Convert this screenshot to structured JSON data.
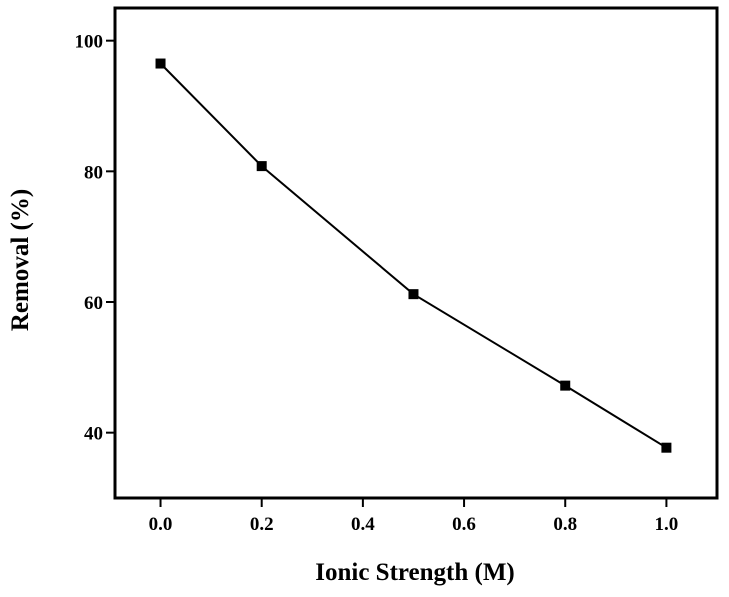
{
  "chart_data": {
    "type": "line",
    "title": "",
    "xlabel": "Ionic Strength (M)",
    "ylabel": "Removal (%)",
    "xlim": [
      -0.09,
      1.1
    ],
    "ylim": [
      30,
      105
    ],
    "x_ticks": [
      0.0,
      0.2,
      0.4,
      0.6,
      0.8,
      1.0
    ],
    "x_tick_labels": [
      "0.0",
      "0.2",
      "0.4",
      "0.6",
      "0.8",
      "1.0"
    ],
    "y_ticks": [
      40,
      60,
      80,
      100
    ],
    "y_tick_labels": [
      "40",
      "60",
      "80",
      "100"
    ],
    "grid": false,
    "legend": "none",
    "series": [
      {
        "x": [
          0.0,
          0.2,
          0.5,
          0.8,
          1.0
        ],
        "y": [
          96.5,
          80.8,
          61.2,
          47.2,
          37.7
        ],
        "color": "#000000",
        "marker": "square"
      }
    ]
  }
}
